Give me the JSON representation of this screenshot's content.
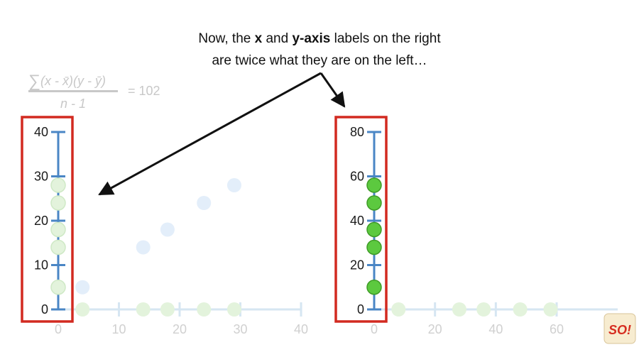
{
  "caption": {
    "line1_before": "Now, the ",
    "line1_x": "x",
    "line1_mid": " and ",
    "line1_yaxis": "y-axis",
    "line1_after": " labels on the right",
    "line2": "are twice what they are on the left…"
  },
  "formula": {
    "sum_symbol": "∑",
    "numerator": "(x - x̄)(y - ȳ)",
    "denominator": "n - 1",
    "result": "= 102"
  },
  "left_plot": {
    "y_ticks": [
      "0",
      "10",
      "20",
      "30",
      "40"
    ],
    "x_ticks": [
      "0",
      "10",
      "20",
      "30",
      "40"
    ],
    "points": [
      {
        "x": 4,
        "y": 5
      },
      {
        "x": 14,
        "y": 14
      },
      {
        "x": 18,
        "y": 18
      },
      {
        "x": 24,
        "y": 24
      },
      {
        "x": 29,
        "y": 28
      }
    ],
    "y_projections": [
      5,
      14,
      18,
      24,
      28
    ],
    "x_projections": [
      4,
      14,
      18,
      24,
      29
    ]
  },
  "right_plot": {
    "y_ticks": [
      "0",
      "20",
      "40",
      "60",
      "80"
    ],
    "x_ticks": [
      "0",
      "20",
      "40",
      "60"
    ],
    "y_projections": [
      10,
      28,
      36,
      48,
      56
    ],
    "x_projections": [
      8,
      28,
      36,
      48,
      58
    ]
  },
  "colors": {
    "axis": "#4a86c5",
    "axis_faded": "#d6e6f2",
    "highlight_box": "#d22a20",
    "point_blue_faded": "#e3eefa",
    "point_green_faded": "#e3f3dc",
    "point_green": "#5cc93f",
    "point_green_stroke": "#3f9c27",
    "arrow": "#111111"
  },
  "logo": {
    "text": "SO!"
  }
}
